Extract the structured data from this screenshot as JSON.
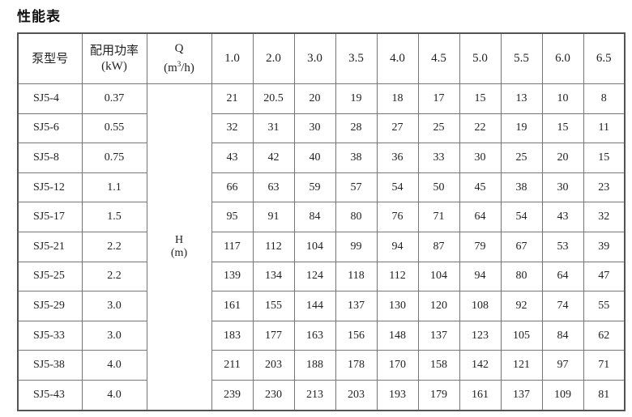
{
  "title": "性能表",
  "headers": {
    "model": "泵型号",
    "power_label": "配用功率",
    "power_unit": "(kW)",
    "q_label": "Q",
    "q_unit_pre": "(m",
    "q_unit_sup": "3",
    "q_unit_post": "/h)",
    "h_label": "H",
    "h_unit": "(m)",
    "flows": [
      "1.0",
      "2.0",
      "3.0",
      "3.5",
      "4.0",
      "4.5",
      "5.0",
      "5.5",
      "6.0",
      "6.5"
    ]
  },
  "rows": [
    {
      "model": "SJ5-4",
      "power": "0.37",
      "heads": [
        "21",
        "20.5",
        "20",
        "19",
        "18",
        "17",
        "15",
        "13",
        "10",
        "8"
      ]
    },
    {
      "model": "SJ5-6",
      "power": "0.55",
      "heads": [
        "32",
        "31",
        "30",
        "28",
        "27",
        "25",
        "22",
        "19",
        "15",
        "11"
      ]
    },
    {
      "model": "SJ5-8",
      "power": "0.75",
      "heads": [
        "43",
        "42",
        "40",
        "38",
        "36",
        "33",
        "30",
        "25",
        "20",
        "15"
      ]
    },
    {
      "model": "SJ5-12",
      "power": "1.1",
      "heads": [
        "66",
        "63",
        "59",
        "57",
        "54",
        "50",
        "45",
        "38",
        "30",
        "23"
      ]
    },
    {
      "model": "SJ5-17",
      "power": "1.5",
      "heads": [
        "95",
        "91",
        "84",
        "80",
        "76",
        "71",
        "64",
        "54",
        "43",
        "32"
      ]
    },
    {
      "model": "SJ5-21",
      "power": "2.2",
      "heads": [
        "117",
        "112",
        "104",
        "99",
        "94",
        "87",
        "79",
        "67",
        "53",
        "39"
      ]
    },
    {
      "model": "SJ5-25",
      "power": "2.2",
      "heads": [
        "139",
        "134",
        "124",
        "118",
        "112",
        "104",
        "94",
        "80",
        "64",
        "47"
      ]
    },
    {
      "model": "SJ5-29",
      "power": "3.0",
      "heads": [
        "161",
        "155",
        "144",
        "137",
        "130",
        "120",
        "108",
        "92",
        "74",
        "55"
      ]
    },
    {
      "model": "SJ5-33",
      "power": "3.0",
      "heads": [
        "183",
        "177",
        "163",
        "156",
        "148",
        "137",
        "123",
        "105",
        "84",
        "62"
      ]
    },
    {
      "model": "SJ5-38",
      "power": "4.0",
      "heads": [
        "211",
        "203",
        "188",
        "178",
        "170",
        "158",
        "142",
        "121",
        "97",
        "71"
      ]
    },
    {
      "model": "SJ5-43",
      "power": "4.0",
      "heads": [
        "239",
        "230",
        "213",
        "203",
        "193",
        "179",
        "161",
        "137",
        "109",
        "81"
      ]
    }
  ]
}
